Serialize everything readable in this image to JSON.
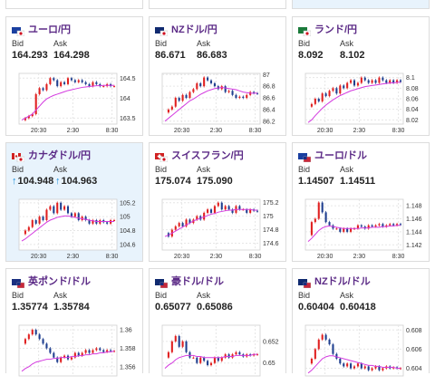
{
  "labels": {
    "bid": "Bid",
    "ask": "Ask"
  },
  "colors": {
    "up": "#e02020",
    "down": "#1f3f8f",
    "ma": "#d33adf",
    "accent": "#5b2a86"
  },
  "cards": [
    {
      "pair": "ユーロ/円",
      "flag": "eu-jp-flag",
      "bid": "164.293",
      "ask": "164.298",
      "ticks": [
        "164.5",
        "164",
        "163.5"
      ],
      "times": [
        "20:30",
        "2:30",
        "8:30"
      ],
      "highlight": false,
      "arrow": false,
      "series": [
        163.45,
        163.5,
        163.55,
        163.6,
        164.1,
        164.25,
        164.2,
        164.35,
        164.5,
        164.45,
        164.3,
        164.4,
        164.35,
        164.5,
        164.45,
        164.4,
        164.45,
        164.4,
        164.35,
        164.3,
        164.4,
        164.35,
        164.3,
        164.3,
        164.35,
        164.3,
        164.3
      ],
      "ma": [
        163.45,
        163.5,
        163.55,
        163.6,
        163.7,
        163.8,
        163.9,
        163.98,
        164.03,
        164.07,
        164.1,
        164.13,
        164.16,
        164.19,
        164.21,
        164.23,
        164.25,
        164.27,
        164.28,
        164.29,
        164.3,
        164.31,
        164.31,
        164.32,
        164.32,
        164.32,
        164.32
      ],
      "ymin": 163.35,
      "ymax": 164.62
    },
    {
      "pair": "NZドル/円",
      "flag": "nz-jp-flag",
      "bid": "86.671",
      "ask": "86.683",
      "ticks": [
        "87",
        "86.8",
        "86.6",
        "86.4",
        "86.2"
      ],
      "times": [
        "20:30",
        "2:30",
        "8:30"
      ],
      "highlight": false,
      "arrow": false,
      "series": [
        86.35,
        86.4,
        86.45,
        86.6,
        86.55,
        86.65,
        86.6,
        86.7,
        86.75,
        86.85,
        86.8,
        86.95,
        86.9,
        86.85,
        86.8,
        86.75,
        86.8,
        86.7,
        86.72,
        86.65,
        86.6,
        86.62,
        86.6,
        86.65,
        86.7,
        86.68,
        86.67
      ],
      "ma": [
        86.2,
        86.25,
        86.3,
        86.35,
        86.4,
        86.45,
        86.5,
        86.55,
        86.58,
        86.62,
        86.66,
        86.69,
        86.72,
        86.74,
        86.76,
        86.77,
        86.78,
        86.77,
        86.76,
        86.75,
        86.74,
        86.72,
        86.7,
        86.69,
        86.68,
        86.68,
        86.68
      ],
      "ymin": 86.15,
      "ymax": 87.02
    },
    {
      "pair": "ランド/円",
      "flag": "za-jp-flag",
      "bid": "8.092",
      "ask": "8.102",
      "ticks": [
        "8.1",
        "8.08",
        "8.06",
        "8.04",
        "8.02"
      ],
      "times": [
        "20:30",
        "2:30",
        "8:30"
      ],
      "highlight": false,
      "arrow": false,
      "series": [
        8.045,
        8.05,
        8.06,
        8.055,
        8.07,
        8.065,
        8.075,
        8.08,
        8.07,
        8.085,
        8.08,
        8.09,
        8.095,
        8.085,
        8.09,
        8.1,
        8.095,
        8.09,
        8.095,
        8.09,
        8.1,
        8.095,
        8.09,
        8.095,
        8.09,
        8.095,
        8.092
      ],
      "ma": [
        8.015,
        8.02,
        8.028,
        8.035,
        8.042,
        8.048,
        8.053,
        8.058,
        8.062,
        8.066,
        8.069,
        8.072,
        8.075,
        8.077,
        8.079,
        8.081,
        8.083,
        8.084,
        8.085,
        8.086,
        8.087,
        8.088,
        8.089,
        8.09,
        8.09,
        8.091,
        8.091
      ],
      "ymin": 8.012,
      "ymax": 8.108
    },
    {
      "pair": "カナダドル/円",
      "flag": "ca-jp-flag",
      "bid": "104.948",
      "ask": "104.963",
      "ticks": [
        "105.2",
        "105",
        "104.8",
        "104.6"
      ],
      "times": [
        "20:30",
        "2:30",
        "8:30"
      ],
      "highlight": true,
      "arrow": true,
      "series": [
        104.75,
        104.8,
        104.85,
        104.95,
        104.9,
        105.0,
        104.95,
        105.1,
        105.15,
        105.05,
        105.2,
        105.1,
        105.15,
        105.05,
        105.0,
        105.05,
        104.95,
        105.0,
        104.95,
        104.9,
        104.95,
        104.9,
        104.95,
        104.92,
        104.9,
        104.95,
        104.95
      ],
      "ma": [
        104.65,
        104.68,
        104.72,
        104.76,
        104.8,
        104.84,
        104.88,
        104.92,
        104.95,
        104.97,
        104.99,
        105.0,
        105.01,
        105.01,
        105.0,
        104.99,
        104.98,
        104.97,
        104.96,
        104.95,
        104.94,
        104.93,
        104.93,
        104.93,
        104.93,
        104.93,
        104.93
      ],
      "ymin": 104.52,
      "ymax": 105.25
    },
    {
      "pair": "スイスフラン/円",
      "flag": "ch-jp-flag",
      "bid": "175.074",
      "ask": "175.090",
      "ticks": [
        "175.2",
        "175",
        "174.8",
        "174.6"
      ],
      "times": [
        "20:30",
        "2:30",
        "8:30"
      ],
      "highlight": false,
      "arrow": false,
      "series": [
        174.75,
        174.7,
        174.8,
        174.85,
        174.9,
        174.85,
        174.95,
        174.9,
        174.95,
        175.0,
        174.95,
        175.05,
        175.1,
        175.05,
        175.15,
        175.2,
        175.1,
        175.15,
        175.1,
        175.05,
        175.15,
        175.1,
        175.1,
        175.05,
        175.1,
        175.08,
        175.07
      ],
      "ma": [
        174.7,
        174.72,
        174.75,
        174.78,
        174.81,
        174.84,
        174.87,
        174.9,
        174.93,
        174.95,
        174.97,
        174.99,
        175.01,
        175.03,
        175.04,
        175.06,
        175.07,
        175.08,
        175.09,
        175.09,
        175.1,
        175.1,
        175.1,
        175.1,
        175.1,
        175.09,
        175.09
      ],
      "ymin": 174.5,
      "ymax": 175.25
    },
    {
      "pair": "ユーロ/ドル",
      "flag": "eu-us-flag",
      "bid": "1.14507",
      "ask": "1.14511",
      "ticks": [
        "1.148",
        "1.146",
        "1.144",
        "1.142"
      ],
      "times": [
        "20:30",
        "2:30",
        "8:30"
      ],
      "highlight": false,
      "arrow": false,
      "series": [
        1.1435,
        1.1455,
        1.146,
        1.1485,
        1.147,
        1.1455,
        1.145,
        1.1445,
        1.1445,
        1.144,
        1.1445,
        1.144,
        1.1445,
        1.1445,
        1.145,
        1.1448,
        1.1445,
        1.145,
        1.1448,
        1.145,
        1.1452,
        1.1448,
        1.145,
        1.1452,
        1.145,
        1.1452,
        1.1451
      ],
      "ma": [
        1.1425,
        1.143,
        1.1436,
        1.1442,
        1.1446,
        1.1448,
        1.1449,
        1.1448,
        1.1447,
        1.1446,
        1.1445,
        1.1445,
        1.1445,
        1.1445,
        1.1445,
        1.1446,
        1.1446,
        1.1446,
        1.1447,
        1.1447,
        1.1447,
        1.1448,
        1.1448,
        1.1449,
        1.1449,
        1.145,
        1.145
      ],
      "ymin": 1.1412,
      "ymax": 1.149
    },
    {
      "pair": "英ポンド/ドル",
      "flag": "gb-us-flag",
      "bid": "1.35774",
      "ask": "1.35784",
      "ticks": [
        "1.36",
        "1.358",
        "1.356"
      ],
      "times": [],
      "highlight": false,
      "arrow": false,
      "series": [
        1.3585,
        1.359,
        1.3595,
        1.36,
        1.3595,
        1.359,
        1.3585,
        1.358,
        1.3575,
        1.357,
        1.3565,
        1.357,
        1.3572,
        1.3568,
        1.357,
        1.3575,
        1.3572,
        1.3575,
        1.3578,
        1.3575,
        1.3578,
        1.358,
        1.3578,
        1.3576,
        1.3578,
        1.3577,
        1.3577
      ],
      "ma": [
        1.3555,
        1.3558,
        1.356,
        1.3563,
        1.3565,
        1.3566,
        1.3567,
        1.3568,
        1.3568,
        1.3569,
        1.3569,
        1.357,
        1.357,
        1.357,
        1.3571,
        1.3571,
        1.3572,
        1.3572,
        1.3573,
        1.3573,
        1.3574,
        1.3574,
        1.3575,
        1.3575,
        1.3576,
        1.3576,
        1.3577
      ],
      "ymin": 1.355,
      "ymax": 1.3605
    },
    {
      "pair": "豪ドル/ドル",
      "flag": "au-us-flag",
      "bid": "0.65077",
      "ask": "0.65086",
      "ticks": [
        "0.652",
        "0.65"
      ],
      "times": [],
      "highlight": false,
      "arrow": false,
      "series": [
        0.6505,
        0.651,
        0.652,
        0.6525,
        0.6515,
        0.652,
        0.651,
        0.6505,
        0.6505,
        0.65,
        0.6505,
        0.6502,
        0.6498,
        0.65,
        0.6505,
        0.6502,
        0.6505,
        0.6508,
        0.6505,
        0.6508,
        0.651,
        0.6508,
        0.6506,
        0.6508,
        0.6507,
        0.6508,
        0.6508
      ],
      "ma": [
        0.6495,
        0.6498,
        0.65,
        0.6503,
        0.6505,
        0.6506,
        0.6507,
        0.6507,
        0.6507,
        0.6506,
        0.6506,
        0.6505,
        0.6505,
        0.6505,
        0.6505,
        0.6505,
        0.6505,
        0.6506,
        0.6506,
        0.6506,
        0.6507,
        0.6507,
        0.6507,
        0.6507,
        0.6507,
        0.6508,
        0.6508
      ],
      "ymin": 0.6488,
      "ymax": 0.6535
    },
    {
      "pair": "NZドル/ドル",
      "flag": "nz-us-flag",
      "bid": "0.60404",
      "ask": "0.60418",
      "ticks": [
        "0.608",
        "0.606",
        "0.604"
      ],
      "times": [],
      "highlight": false,
      "arrow": false,
      "series": [
        0.6045,
        0.605,
        0.606,
        0.607,
        0.6075,
        0.607,
        0.6065,
        0.6055,
        0.605,
        0.6045,
        0.6042,
        0.6045,
        0.604,
        0.6042,
        0.6045,
        0.604,
        0.6042,
        0.6038,
        0.604,
        0.6042,
        0.6038,
        0.604,
        0.6042,
        0.604,
        0.6041,
        0.604,
        0.604
      ],
      "ma": [
        0.6035,
        0.6038,
        0.6042,
        0.6046,
        0.605,
        0.6052,
        0.6053,
        0.6053,
        0.6052,
        0.6051,
        0.605,
        0.6049,
        0.6048,
        0.6047,
        0.6046,
        0.6045,
        0.6044,
        0.6043,
        0.6043,
        0.6042,
        0.6042,
        0.6041,
        0.6041,
        0.6041,
        0.6041,
        0.604,
        0.604
      ],
      "ymin": 0.6032,
      "ymax": 0.6085
    }
  ]
}
